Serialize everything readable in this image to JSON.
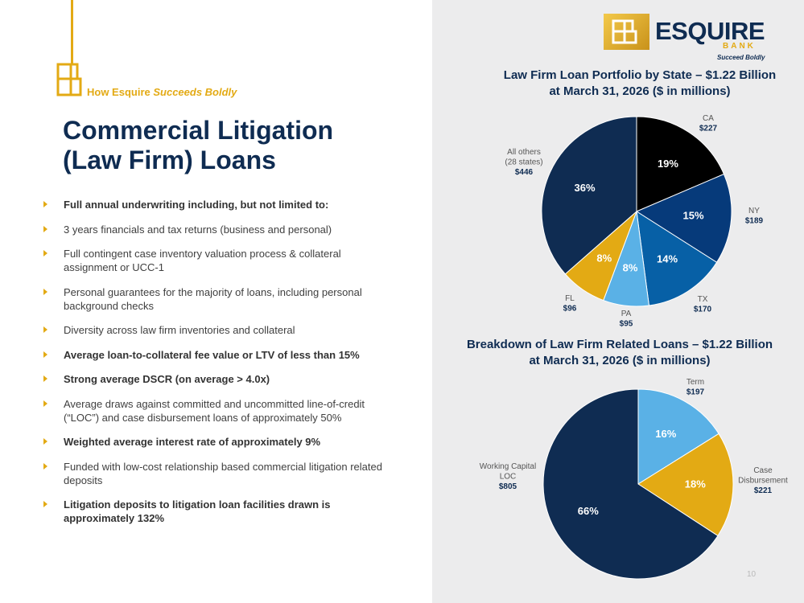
{
  "left": {
    "kicker_prefix": "How Esquire ",
    "kicker_italic": "Succeeds Boldly",
    "title_line1": "Commercial Litigation",
    "title_line2": "(Law Firm) Loans",
    "bullets": [
      {
        "text": "Full annual underwriting including, but not limited to:",
        "bold": true
      },
      {
        "text": "3 years financials and tax returns (business and personal)",
        "bold": false
      },
      {
        "text": "Full contingent case inventory valuation process & collateral assignment or UCC-1",
        "bold": false
      },
      {
        "text": "Personal guarantees for the majority of loans, including personal background checks",
        "bold": false
      },
      {
        "text": "Diversity across law firm inventories and collateral",
        "bold": false
      },
      {
        "text": "Average loan-to-collateral fee value or LTV of less than 15%",
        "bold": true
      },
      {
        "text": "Strong average DSCR (on average > 4.0x)",
        "bold": true
      },
      {
        "text": "Average draws against committed and uncommitted line-of-credit (“LOC”) and case disbursement loans of approximately 50%",
        "bold": false
      },
      {
        "text": "Weighted average interest rate of approximately 9%",
        "bold": true
      },
      {
        "text": "Funded with low-cost relationship based commercial litigation related deposits",
        "bold": false
      },
      {
        "text": "Litigation deposits to litigation loan facilities drawn is approximately 132%",
        "bold": true
      }
    ]
  },
  "logo": {
    "word": "ESQUIRE",
    "bank": "BANK",
    "tagline": "Succeed Boldly"
  },
  "colors": {
    "navy": "#0f2c52",
    "gold": "#e3aa14",
    "black": "#000000",
    "dark_blue": "#063a7a",
    "mid_blue": "#0760a6",
    "light_blue": "#5ab1e6",
    "panel_gray": "#ececed"
  },
  "page_number": "10",
  "chart_data": [
    {
      "type": "pie",
      "title_line1": "Law Firm Loan Portfolio by State – $1.22 Billion",
      "title_line2": "at March 31, 2026 ($ in millions)",
      "slices": [
        {
          "label": [
            "CA"
          ],
          "value_label": "$227",
          "value": 227,
          "pct": "19%",
          "color": "#000000"
        },
        {
          "label": [
            "NY"
          ],
          "value_label": "$189",
          "value": 189,
          "pct": "15%",
          "color": "#063a7a"
        },
        {
          "label": [
            "TX"
          ],
          "value_label": "$170",
          "value": 170,
          "pct": "14%",
          "color": "#0760a6"
        },
        {
          "label": [
            "PA"
          ],
          "value_label": "$95",
          "value": 95,
          "pct": "8%",
          "color": "#5ab1e6"
        },
        {
          "label": [
            "FL"
          ],
          "value_label": "$96",
          "value": 96,
          "pct": "8%",
          "color": "#e3aa14"
        },
        {
          "label": [
            "All others",
            "(28 states)"
          ],
          "value_label": "$446",
          "value": 446,
          "pct": "36%",
          "color": "#0f2c52"
        }
      ]
    },
    {
      "type": "pie",
      "title_line1": "Breakdown of Law Firm Related Loans – $1.22 Billion",
      "title_line2": "at March 31, 2026 ($ in millions)",
      "slices": [
        {
          "label": [
            "Term"
          ],
          "value_label": "$197",
          "value": 197,
          "pct": "16%",
          "color": "#5ab1e6"
        },
        {
          "label": [
            "Case",
            "Disbursement"
          ],
          "value_label": "$221",
          "value": 221,
          "pct": "18%",
          "color": "#e3aa14"
        },
        {
          "label": [
            "Working Capital",
            "LOC"
          ],
          "value_label": "$805",
          "value": 805,
          "pct": "66%",
          "color": "#0f2c52"
        }
      ]
    }
  ]
}
